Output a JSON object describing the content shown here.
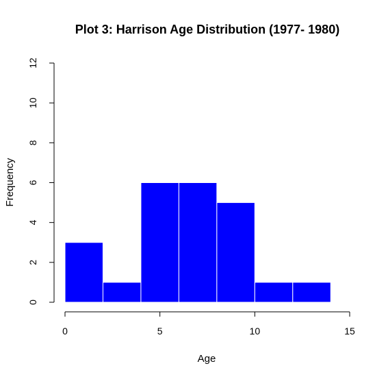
{
  "chart_data": {
    "type": "bar",
    "title": "Plot 3: Harrison Age Distribution (1977- 1980)",
    "xlabel": "Age",
    "ylabel": "Frequency",
    "bin_edges": [
      0,
      2,
      4,
      6,
      8,
      10,
      12,
      14
    ],
    "values": [
      3,
      1,
      6,
      6,
      5,
      1,
      1
    ],
    "xlim": [
      0,
      15
    ],
    "ylim": [
      0,
      12
    ],
    "x_ticks": [
      0,
      5,
      10,
      15
    ],
    "y_ticks": [
      0,
      2,
      4,
      6,
      8,
      10,
      12
    ],
    "bar_color": "#0000ff",
    "bar_border_color": "#ffffff",
    "grid": false
  }
}
